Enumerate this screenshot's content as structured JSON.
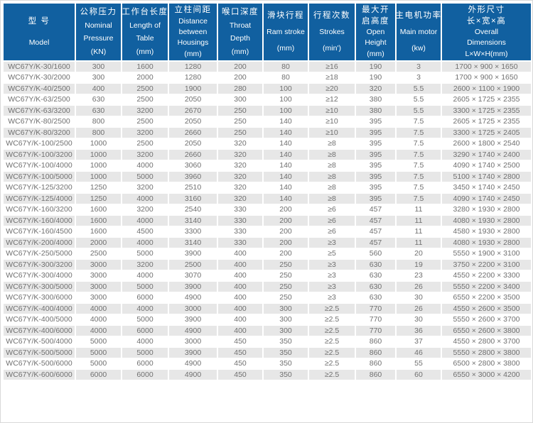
{
  "page": {
    "title": "WC67Y/K press brake specification table",
    "colors": {
      "header_bg": "#1160a0",
      "header_text": "#ffffff",
      "row_stripe": "#e7e7e7",
      "row_white": "#ffffff",
      "body_text": "#707070",
      "grid": "#ffffff"
    }
  },
  "table": {
    "columns": [
      {
        "id": "model",
        "lines": [
          "型 号",
          "Model"
        ]
      },
      {
        "id": "nominal-pressure",
        "lines": [
          "公称压力",
          "Nominal",
          "Pressure",
          "(KN)"
        ]
      },
      {
        "id": "table-length",
        "lines": [
          "工作台长度",
          "Length of",
          "Table",
          "(mm)"
        ]
      },
      {
        "id": "housing-distance",
        "lines": [
          "立柱间距",
          "Distance",
          "between",
          "Housings",
          "(mm)"
        ]
      },
      {
        "id": "throat-depth",
        "lines": [
          "喉口深度",
          "Throat",
          "Depth",
          "(mm)"
        ]
      },
      {
        "id": "ram-stroke",
        "lines": [
          "滑块行程",
          "Ram stroke",
          "(mm)"
        ]
      },
      {
        "id": "strokes",
        "lines": [
          "行程次数",
          "Strokes",
          "(min')"
        ]
      },
      {
        "id": "open-height",
        "lines": [
          "最大开",
          "启高度",
          "Open",
          "Height",
          "(mm)"
        ]
      },
      {
        "id": "main-motor",
        "lines": [
          "主电机功率",
          "Main motor",
          "(kw)"
        ]
      },
      {
        "id": "dimensions",
        "lines": [
          "外形尺寸",
          "长×宽×高",
          "Overall",
          "Dimensions",
          "L×W×H(mm)"
        ]
      }
    ],
    "rows": [
      [
        "WC67Y/K-30/1600",
        "300",
        "1600",
        "1280",
        "200",
        "80",
        "≥16",
        "190",
        "3",
        "1700 × 900 × 1650"
      ],
      [
        "WC67Y/K-30/2000",
        "300",
        "2000",
        "1280",
        "200",
        "80",
        "≥18",
        "190",
        "3",
        "1700 × 900 × 1650"
      ],
      [
        "WC67Y/K-40/2500",
        "400",
        "2500",
        "1900",
        "280",
        "100",
        "≥20",
        "320",
        "5.5",
        "2600 × 1100 × 1900"
      ],
      [
        "WC67Y/K-63/2500",
        "630",
        "2500",
        "2050",
        "300",
        "100",
        "≥12",
        "380",
        "5.5",
        "2605 × 1725 × 2355"
      ],
      [
        "WC67Y/K-63/3200",
        "630",
        "3200",
        "2670",
        "250",
        "100",
        "≥10",
        "380",
        "5.5",
        "3300 × 1725 × 2355"
      ],
      [
        "WC67Y/K-80/2500",
        "800",
        "2500",
        "2050",
        "250",
        "140",
        "≥10",
        "395",
        "7.5",
        "2605 × 1725 × 2355"
      ],
      [
        "WC67Y/K-80/3200",
        "800",
        "3200",
        "2660",
        "250",
        "140",
        "≥10",
        "395",
        "7.5",
        "3300 × 1725 × 2405"
      ],
      [
        "WC67Y/K-100/2500",
        "1000",
        "2500",
        "2050",
        "320",
        "140",
        "≥8",
        "395",
        "7.5",
        "2600 × 1800 × 2540"
      ],
      [
        "WC67Y/K-100/3200",
        "1000",
        "3200",
        "2660",
        "320",
        "140",
        "≥8",
        "395",
        "7.5",
        "3290 × 1740 × 2400"
      ],
      [
        "WC67Y/K-100/4000",
        "1000",
        "4000",
        "3060",
        "320",
        "140",
        "≥8",
        "395",
        "7.5",
        "4090 × 1740 × 2500"
      ],
      [
        "WC67Y/K-100/5000",
        "1000",
        "5000",
        "3960",
        "320",
        "140",
        "≥8",
        "395",
        "7.5",
        "5100 × 1740 × 2800"
      ],
      [
        "WC67Y/K-125/3200",
        "1250",
        "3200",
        "2510",
        "320",
        "140",
        "≥8",
        "395",
        "7.5",
        "3450 × 1740 × 2450"
      ],
      [
        "WC67Y/K-125/4000",
        "1250",
        "4000",
        "3160",
        "320",
        "140",
        "≥8",
        "395",
        "7.5",
        "4090 × 1740 × 2450"
      ],
      [
        "WC67Y/K-160/3200",
        "1600",
        "3200",
        "2540",
        "330",
        "200",
        "≥6",
        "457",
        "11",
        "3280 × 1930 × 2800"
      ],
      [
        "WC67Y/K-160/4000",
        "1600",
        "4000",
        "3140",
        "330",
        "200",
        "≥6",
        "457",
        "11",
        "4080 × 1930 × 2800"
      ],
      [
        "WC67Y/K-160/4500",
        "1600",
        "4500",
        "3300",
        "330",
        "200",
        "≥6",
        "457",
        "11",
        "4580 × 1930 × 2800"
      ],
      [
        "WC67Y/K-200/4000",
        "2000",
        "4000",
        "3140",
        "330",
        "200",
        "≥3",
        "457",
        "11",
        "4080 × 1930 × 2800"
      ],
      [
        "WC67Y/K-250/5000",
        "2500",
        "5000",
        "3900",
        "400",
        "200",
        "≥5",
        "560",
        "20",
        "5550 × 1900 × 3100"
      ],
      [
        "WC67Y/K-300/3200",
        "3000",
        "3200",
        "2500",
        "400",
        "250",
        "≥3",
        "630",
        "19",
        "3750 × 2200 × 3100"
      ],
      [
        "WC67Y/K-300/4000",
        "3000",
        "4000",
        "3070",
        "400",
        "250",
        "≥3",
        "630",
        "23",
        "4550 × 2200 × 3300"
      ],
      [
        "WC67Y/K-300/5000",
        "3000",
        "5000",
        "3900",
        "400",
        "250",
        "≥3",
        "630",
        "26",
        "5550 × 2200 × 3400"
      ],
      [
        "WC67Y/K-300/6000",
        "3000",
        "6000",
        "4900",
        "400",
        "250",
        "≥3",
        "630",
        "30",
        "6550 × 2200 × 3500"
      ],
      [
        "WC67Y/K-400/4000",
        "4000",
        "4000",
        "3000",
        "400",
        "300",
        "≥2.5",
        "770",
        "26",
        "4550 × 2600 × 3500"
      ],
      [
        "WC67Y/K-400/5000",
        "4000",
        "5000",
        "3900",
        "400",
        "300",
        "≥2.5",
        "770",
        "30",
        "5550 × 2600 × 3700"
      ],
      [
        "WC67Y/K-400/6000",
        "4000",
        "6000",
        "4900",
        "400",
        "300",
        "≥2.5",
        "770",
        "36",
        "6550 × 2600 × 3800"
      ],
      [
        "WC67Y/K-500/4000",
        "5000",
        "4000",
        "3000",
        "450",
        "350",
        "≥2.5",
        "860",
        "37",
        "4550 × 2800 × 3700"
      ],
      [
        "WC67Y/K-500/5000",
        "5000",
        "5000",
        "3900",
        "450",
        "350",
        "≥2.5",
        "860",
        "46",
        "5550 × 2800 × 3800"
      ],
      [
        "WC67Y/K-500/6000",
        "5000",
        "6000",
        "4900",
        "450",
        "350",
        "≥2.5",
        "860",
        "55",
        "6500 × 2800 × 3800"
      ],
      [
        "WC67Y/K-600/6000",
        "6000",
        "6000",
        "4900",
        "450",
        "350",
        "≥2.5",
        "860",
        "60",
        "6550 × 3000 × 4200"
      ]
    ]
  }
}
